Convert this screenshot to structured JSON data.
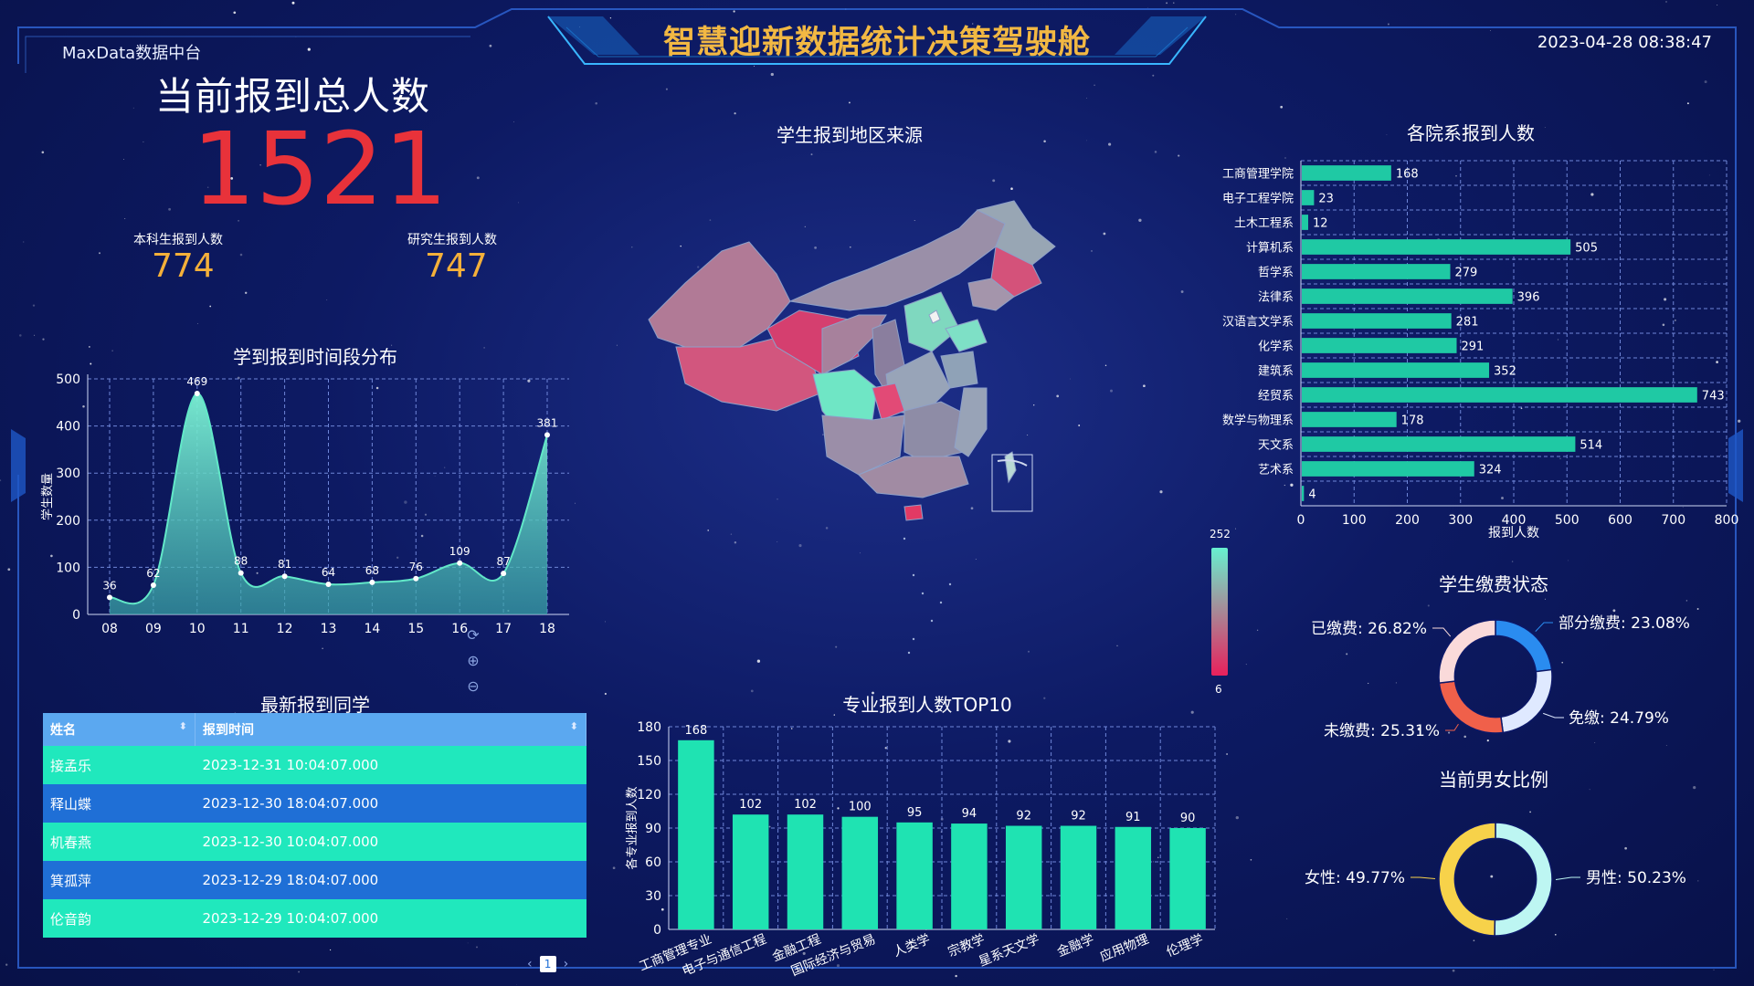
{
  "header": {
    "brand": "MaxData数据中台",
    "title": "智慧迎新数据统计决策驾驶舱",
    "datetime": "2023-04-28 08:38:47"
  },
  "summary": {
    "title": "当前报到总人数",
    "total": "1521",
    "undergrad_label": "本科生报到人数",
    "undergrad_value": "774",
    "grad_label": "研究生报到人数",
    "grad_value": "747"
  },
  "sections": {
    "time_dist": "学到报到时间段分布",
    "map": "学生报到地区来源",
    "dept": "各院系报到人数",
    "latest": "最新报到同学",
    "major_top10": "专业报到人数TOP10",
    "payment": "学生缴费状态",
    "gender": "当前男女比例"
  },
  "map": {
    "legend_max": "252",
    "legend_min": "6",
    "colors": {
      "high": "#67f0d0",
      "low": "#e8205c"
    },
    "controls": [
      "refresh-icon",
      "zoom-in-icon",
      "zoom-out-icon"
    ]
  },
  "latest_table": {
    "headers": [
      "姓名",
      "报到时间"
    ],
    "rows": [
      {
        "name": "接孟乐",
        "time": "2023-12-31 10:04:07.000"
      },
      {
        "name": "释山蝶",
        "time": "2023-12-30 18:04:07.000"
      },
      {
        "name": "机春燕",
        "time": "2023-12-30 10:04:07.000"
      },
      {
        "name": "箕孤萍",
        "time": "2023-12-29 18:04:07.000"
      },
      {
        "name": "伦音韵",
        "time": "2023-12-29 10:04:07.000"
      }
    ],
    "page": "1",
    "prev": "‹",
    "next": "›"
  },
  "chart_data": [
    {
      "id": "time_dist",
      "type": "area",
      "title": "学到报到时间段分布",
      "ylabel": "学生数量",
      "x": [
        "08",
        "09",
        "10",
        "11",
        "12",
        "13",
        "14",
        "15",
        "16",
        "17",
        "18"
      ],
      "ylim": [
        0,
        500
      ],
      "yticks": [
        0,
        100,
        200,
        300,
        400,
        500
      ],
      "points": [
        {
          "x": 8.0,
          "y": 36
        },
        {
          "x": 9.0,
          "y": 62
        },
        {
          "x": 10.0,
          "y": 469
        },
        {
          "x": 11.0,
          "y": 88
        },
        {
          "x": 12.0,
          "y": 81
        },
        {
          "x": 13.0,
          "y": 64
        },
        {
          "x": 14.0,
          "y": 68
        },
        {
          "x": 15.0,
          "y": 76
        },
        {
          "x": 16.0,
          "y": 109
        },
        {
          "x": 17.0,
          "y": 87
        },
        {
          "x": 18.0,
          "y": 381
        }
      ],
      "color": "#62e8c8",
      "grid": true
    },
    {
      "id": "dept",
      "type": "bar",
      "orientation": "horizontal",
      "title": "各院系报到人数",
      "xlabel": "报到人数",
      "categories": [
        "工商管理学院",
        "电子工程学院",
        "土木工程系",
        "计算机系",
        "哲学系",
        "法律系",
        "汉语言文学系",
        "化学系",
        "建筑系",
        "经贸系",
        "数学与物理系",
        "天文系",
        "艺术系",
        ""
      ],
      "values": [
        168,
        23,
        12,
        505,
        279,
        396,
        281,
        291,
        352,
        743,
        178,
        514,
        324,
        4
      ],
      "xlim": [
        0,
        800
      ],
      "xticks": [
        0,
        100,
        200,
        300,
        400,
        500,
        600,
        700,
        800
      ],
      "color": "#1fc9a4",
      "grid": true
    },
    {
      "id": "major_top10",
      "type": "bar",
      "title": "专业报到人数TOP10",
      "ylabel": "各专业报到人数",
      "categories": [
        "工商管理专业",
        "电子与通信工程",
        "金融工程",
        "国际经济与贸易",
        "人类学",
        "宗教学",
        "星系天文学",
        "金融学",
        "应用物理",
        "伦理学"
      ],
      "values": [
        168,
        102,
        102,
        100,
        95,
        94,
        92,
        92,
        91,
        90
      ],
      "ylim": [
        0,
        180
      ],
      "yticks": [
        0,
        30,
        60,
        90,
        120,
        150,
        180
      ],
      "color": "#1fe3b2",
      "grid": true
    },
    {
      "id": "payment",
      "type": "pie",
      "title": "学生缴费状态",
      "donut": true,
      "slices": [
        {
          "label": "部分缴费: 23.08%",
          "value": 23.08,
          "color": "#2a8cf0"
        },
        {
          "label": "免缴: 24.79%",
          "value": 24.79,
          "color": "#dfe9ff"
        },
        {
          "label": "未缴费: 25.31%",
          "value": 25.31,
          "color": "#f0604a"
        },
        {
          "label": "已缴费: 26.82%",
          "value": 26.82,
          "color": "#fadada"
        }
      ]
    },
    {
      "id": "gender",
      "type": "pie",
      "title": "当前男女比例",
      "donut": true,
      "slices": [
        {
          "label": "男性: 50.23%",
          "value": 50.23,
          "color": "#bdf6f2"
        },
        {
          "label": "女性: 49.77%",
          "value": 49.77,
          "color": "#f7d24a"
        }
      ]
    }
  ]
}
